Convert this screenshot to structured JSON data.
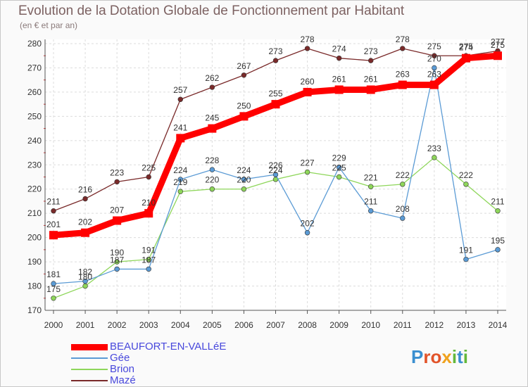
{
  "chart_data": {
    "type": "line",
    "title": "Evolution de la Dotation Globale de Fonctionnement par Habitant",
    "subtitle": "(en € et par an)",
    "xlabel": "",
    "ylabel": "",
    "ylim": [
      170,
      280
    ],
    "yticks": [
      170,
      180,
      190,
      200,
      210,
      220,
      230,
      240,
      250,
      260,
      270,
      280
    ],
    "categories": [
      "2000",
      "2001",
      "2002",
      "2003",
      "2004",
      "2005",
      "2006",
      "2007",
      "2008",
      "2009",
      "2010",
      "2011",
      "2012",
      "2013",
      "2014"
    ],
    "series": [
      {
        "name": "Mazé",
        "color": "#7a2a2a",
        "values": [
          211,
          216,
          223,
          225,
          257,
          262,
          267,
          273,
          278,
          274,
          273,
          278,
          275,
          275,
          277
        ]
      },
      {
        "name": "Brion",
        "color": "#8ed65a",
        "values": [
          175,
          180,
          190,
          191,
          219,
          220,
          220,
          224,
          227,
          225,
          221,
          222,
          233,
          222,
          211
        ]
      },
      {
        "name": "Gée",
        "color": "#5b9bd5",
        "values": [
          181,
          182,
          187,
          187,
          224,
          228,
          224,
          226,
          202,
          229,
          211,
          208,
          270,
          191,
          195
        ]
      },
      {
        "name": "BEAUFORT-EN-VALLéE",
        "color": "#ff0000",
        "values": [
          201,
          202,
          207,
          210,
          241,
          245,
          250,
          255,
          260,
          261,
          261,
          263,
          263,
          274,
          275
        ]
      }
    ],
    "legend": [
      "BEAUFORT-EN-VALLéE",
      "Gée",
      "Brion",
      "Mazé"
    ],
    "legend_position": "bottom-left"
  },
  "logo": {
    "letters": [
      "P",
      "r",
      "o",
      "x",
      "i",
      "t",
      "i"
    ]
  }
}
